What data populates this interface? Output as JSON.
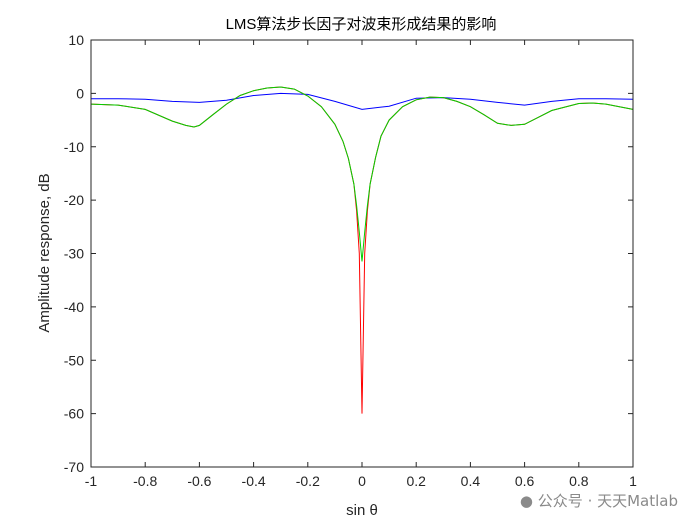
{
  "chart_data": {
    "type": "line",
    "title": "LMS算法步长因子对波束形成结果的影响",
    "xlabel": "sin θ",
    "ylabel": "Amplitude response, dB",
    "xlim": [
      -1,
      1
    ],
    "ylim": [
      -70,
      10
    ],
    "xticks": [
      -1,
      -0.8,
      -0.6,
      -0.4,
      -0.2,
      0,
      0.2,
      0.4,
      0.6,
      0.8,
      1
    ],
    "xtick_labels": [
      "-1",
      "-0.8",
      "-0.6",
      "-0.4",
      "-0.2",
      "0",
      "0.2",
      "0.4",
      "0.6",
      "0.8",
      "1"
    ],
    "yticks": [
      10,
      0,
      -10,
      -20,
      -30,
      -40,
      -50,
      -60,
      -70
    ],
    "ytick_labels": [
      "10",
      "0",
      "-10",
      "-20",
      "-30",
      "-40",
      "-50",
      "-60",
      "-70"
    ],
    "grid": false,
    "series": [
      {
        "color": "#0000ff",
        "x": [
          -1,
          -0.9,
          -0.8,
          -0.7,
          -0.6,
          -0.5,
          -0.4,
          -0.3,
          -0.2,
          -0.1,
          0,
          0.1,
          0.2,
          0.3,
          0.4,
          0.5,
          0.6,
          0.7,
          0.8,
          0.9,
          1
        ],
        "y": [
          -1,
          -1,
          -1.1,
          -1.5,
          -1.7,
          -1.3,
          -0.4,
          0,
          -0.2,
          -1.5,
          -3,
          -2.4,
          -0.9,
          -0.8,
          -1.1,
          -1.7,
          -2.2,
          -1.5,
          -1,
          -1,
          -1.1
        ]
      },
      {
        "color": "#ff0000",
        "x": [
          -1,
          -0.9,
          -0.8,
          -0.7,
          -0.65,
          -0.62,
          -0.6,
          -0.55,
          -0.5,
          -0.45,
          -0.4,
          -0.35,
          -0.3,
          -0.25,
          -0.2,
          -0.15,
          -0.1,
          -0.07,
          -0.05,
          -0.03,
          -0.02,
          -0.01,
          0,
          0.01,
          0.02,
          0.03,
          0.05,
          0.07,
          0.1,
          0.15,
          0.2,
          0.25,
          0.3,
          0.35,
          0.4,
          0.45,
          0.5,
          0.55,
          0.6,
          0.65,
          0.7,
          0.8,
          0.85,
          0.9,
          0.95,
          1
        ],
        "y": [
          -2,
          -2.2,
          -3,
          -5.2,
          -6,
          -6.3,
          -6,
          -4,
          -2,
          -0.4,
          0.5,
          1,
          1.2,
          0.8,
          -0.5,
          -2.5,
          -5.8,
          -9,
          -12.2,
          -17,
          -22,
          -30,
          -60,
          -30,
          -22,
          -17,
          -12,
          -8,
          -5,
          -2.5,
          -1.2,
          -0.7,
          -0.8,
          -1.5,
          -2.5,
          -4,
          -5.6,
          -6,
          -5.8,
          -4.5,
          -3.2,
          -1.9,
          -1.8,
          -2,
          -2.5,
          -3
        ]
      },
      {
        "color": "#00d000",
        "x": [
          -1,
          -0.9,
          -0.8,
          -0.7,
          -0.65,
          -0.62,
          -0.6,
          -0.55,
          -0.5,
          -0.45,
          -0.4,
          -0.35,
          -0.3,
          -0.25,
          -0.2,
          -0.15,
          -0.1,
          -0.07,
          -0.05,
          -0.03,
          -0.02,
          -0.01,
          0,
          0.01,
          0.02,
          0.03,
          0.05,
          0.07,
          0.1,
          0.15,
          0.2,
          0.25,
          0.3,
          0.35,
          0.4,
          0.45,
          0.5,
          0.55,
          0.6,
          0.65,
          0.7,
          0.8,
          0.85,
          0.9,
          0.95,
          1
        ],
        "y": [
          -2,
          -2.2,
          -3,
          -5.2,
          -6,
          -6.3,
          -6,
          -4,
          -2,
          -0.4,
          0.5,
          1,
          1.2,
          0.8,
          -0.5,
          -2.5,
          -5.8,
          -9,
          -12.2,
          -17,
          -21,
          -26,
          -31.5,
          -26,
          -21,
          -17,
          -12,
          -8,
          -5,
          -2.5,
          -1.2,
          -0.7,
          -0.8,
          -1.5,
          -2.5,
          -4,
          -5.6,
          -6,
          -5.8,
          -4.5,
          -3.2,
          -1.9,
          -1.8,
          -2,
          -2.5,
          -3
        ]
      }
    ]
  },
  "watermark": "公众号 · 天天Matlab",
  "watermark_icon": "wechat-icon"
}
